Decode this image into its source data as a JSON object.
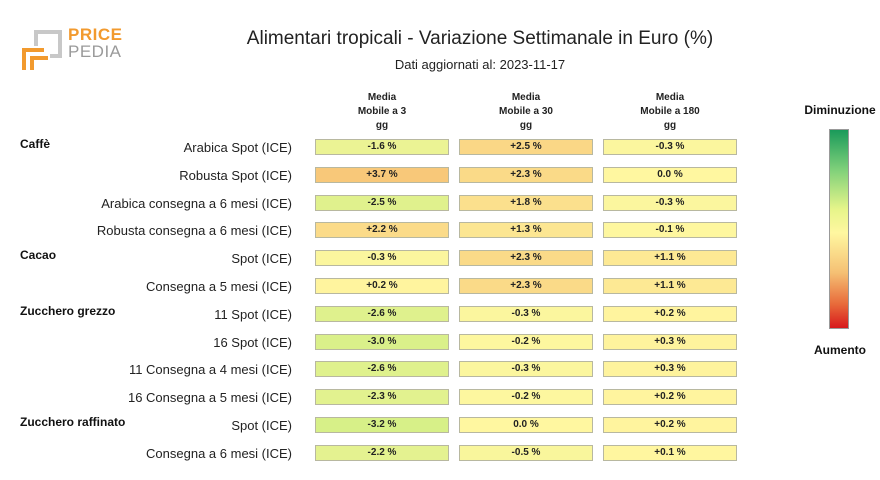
{
  "logo": {
    "part1": "PRICE",
    "part2": "PEDIA"
  },
  "title": "Alimentari tropicali - Variazione Settimanale in Euro (%)",
  "subtitle": "Dati aggiornati al: 2023-11-17",
  "legend": {
    "top": "Diminuzione",
    "bottom": "Aumento"
  },
  "chart_data": {
    "type": "heatmap",
    "columns": [
      {
        "line1": "Media",
        "line2": "Mobile a 3",
        "line3": "gg"
      },
      {
        "line1": "Media",
        "line2": "Mobile a 30",
        "line3": "gg"
      },
      {
        "line1": "Media",
        "line2": "Mobile a 180",
        "line3": "gg"
      }
    ],
    "rows": [
      {
        "group": "Caffè",
        "label": "Arabica Spot (ICE)",
        "values": [
          -1.6,
          2.5,
          -0.3
        ],
        "texts": [
          "-1.6 %",
          "+2.5 %",
          "-0.3 %"
        ]
      },
      {
        "group": "",
        "label": "Robusta Spot (ICE)",
        "values": [
          3.7,
          2.3,
          0.0
        ],
        "texts": [
          "+3.7 %",
          "+2.3 %",
          "0.0 %"
        ]
      },
      {
        "group": "",
        "label": "Arabica consegna a 6 mesi (ICE)",
        "values": [
          -2.5,
          1.8,
          -0.3
        ],
        "texts": [
          "-2.5 %",
          "+1.8 %",
          "-0.3 %"
        ]
      },
      {
        "group": "",
        "label": "Robusta consegna a 6 mesi (ICE)",
        "values": [
          2.2,
          1.3,
          -0.1
        ],
        "texts": [
          "+2.2 %",
          "+1.3 %",
          "-0.1 %"
        ]
      },
      {
        "group": "Cacao",
        "label": "Spot (ICE)",
        "values": [
          -0.3,
          2.3,
          1.1
        ],
        "texts": [
          "-0.3 %",
          "+2.3 %",
          "+1.1 %"
        ]
      },
      {
        "group": "",
        "label": "Consegna a 5 mesi (ICE)",
        "values": [
          0.2,
          2.3,
          1.1
        ],
        "texts": [
          "+0.2 %",
          "+2.3 %",
          "+1.1 %"
        ]
      },
      {
        "group": "Zucchero grezzo",
        "label": "11 Spot (ICE)",
        "values": [
          -2.6,
          -0.3,
          0.2
        ],
        "texts": [
          "-2.6 %",
          "-0.3 %",
          "+0.2 %"
        ]
      },
      {
        "group": "",
        "label": "16 Spot (ICE)",
        "values": [
          -3.0,
          -0.2,
          0.3
        ],
        "texts": [
          "-3.0 %",
          "-0.2 %",
          "+0.3 %"
        ]
      },
      {
        "group": "",
        "label": "11 Consegna a 4 mesi (ICE)",
        "values": [
          -2.6,
          -0.3,
          0.3
        ],
        "texts": [
          "-2.6 %",
          "-0.3 %",
          "+0.3 %"
        ]
      },
      {
        "group": "",
        "label": "16 Consegna a 5 mesi (ICE)",
        "values": [
          -2.3,
          -0.2,
          0.2
        ],
        "texts": [
          "-2.3 %",
          "-0.2 %",
          "+0.2 %"
        ]
      },
      {
        "group": "Zucchero raffinato",
        "label": "Spot (ICE)",
        "values": [
          -3.2,
          0.0,
          0.2
        ],
        "texts": [
          "-3.2 %",
          "0.0 %",
          "+0.2 %"
        ]
      },
      {
        "group": "",
        "label": "Consegna a 6 mesi (ICE)",
        "values": [
          -2.2,
          -0.5,
          0.1
        ],
        "texts": [
          "-2.2 %",
          "-0.5 %",
          "+0.1 %"
        ]
      }
    ]
  }
}
